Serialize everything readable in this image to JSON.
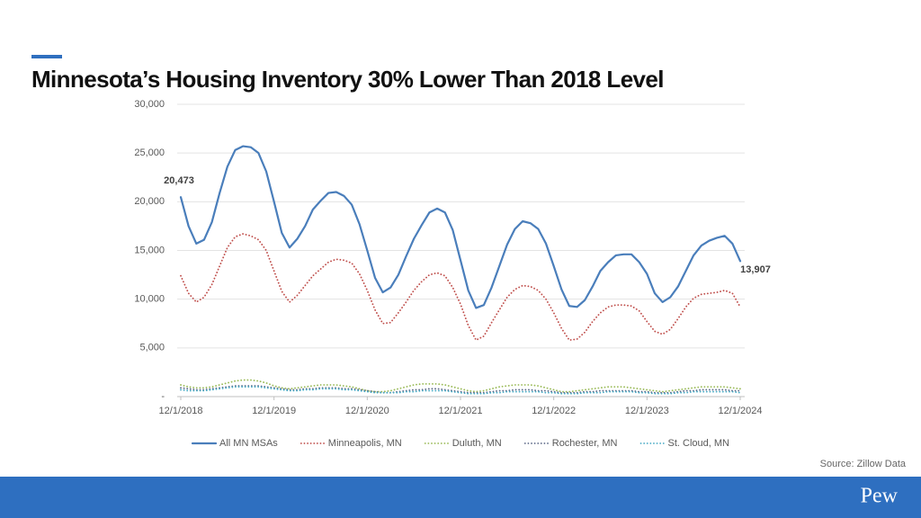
{
  "chart_data": {
    "type": "line",
    "title": "Minnesota’s Housing Inventory 30% Lower Than 2018 Level",
    "source": "Source: Zillow Data",
    "brand": "Pew",
    "categories": [
      "12/1/2018",
      null,
      null,
      null,
      null,
      null,
      null,
      null,
      null,
      null,
      null,
      null,
      "12/1/2019",
      null,
      null,
      null,
      null,
      null,
      null,
      null,
      null,
      null,
      null,
      null,
      "12/1/2020",
      null,
      null,
      null,
      null,
      null,
      null,
      null,
      null,
      null,
      null,
      null,
      "12/1/2021",
      null,
      null,
      null,
      null,
      null,
      null,
      null,
      null,
      null,
      null,
      null,
      "12/1/2022",
      null,
      null,
      null,
      null,
      null,
      null,
      null,
      null,
      null,
      null,
      null,
      "12/1/2023",
      null,
      null,
      null,
      null,
      null,
      null,
      null,
      null,
      null,
      null,
      null,
      "12/1/2024"
    ],
    "ylim": [
      0,
      30000
    ],
    "yticks": [
      {
        "value": 0,
        "label": "-"
      },
      {
        "value": 5000,
        "label": "5,000"
      },
      {
        "value": 10000,
        "label": "10,000"
      },
      {
        "value": 15000,
        "label": "15,000"
      },
      {
        "value": 20000,
        "label": "20,000"
      },
      {
        "value": 25000,
        "label": "25,000"
      },
      {
        "value": 30000,
        "label": "30,000"
      }
    ],
    "grid": true,
    "legend": "bottom",
    "series": [
      {
        "name": "All MN MSAs",
        "color": "#4a7ebb",
        "style": "solid",
        "values": [
          20473,
          17500,
          15700,
          16100,
          17900,
          20900,
          23600,
          25300,
          25700,
          25600,
          25000,
          23100,
          20000,
          16800,
          15300,
          16200,
          17500,
          19200,
          20100,
          20900,
          21000,
          20600,
          19700,
          17700,
          15000,
          12200,
          10700,
          11200,
          12500,
          14400,
          16200,
          17600,
          18900,
          19300,
          18900,
          17100,
          14000,
          10900,
          9100,
          9400,
          11200,
          13400,
          15600,
          17200,
          18000,
          17800,
          17200,
          15700,
          13400,
          11000,
          9300,
          9200,
          9900,
          11300,
          12900,
          13800,
          14500,
          14600,
          14600,
          13800,
          12600,
          10600,
          9700,
          10200,
          11300,
          12900,
          14500,
          15500,
          16000,
          16300,
          16500,
          15700,
          13907
        ],
        "value_labels": [
          "20,473",
          null,
          null,
          null,
          null,
          null,
          null,
          null,
          null,
          null,
          null,
          null,
          null,
          null,
          null,
          null,
          null,
          null,
          null,
          null,
          null,
          null,
          null,
          null,
          null,
          null,
          null,
          null,
          null,
          null,
          null,
          null,
          null,
          null,
          null,
          null,
          null,
          null,
          null,
          null,
          null,
          null,
          null,
          null,
          null,
          null,
          null,
          null,
          null,
          null,
          null,
          null,
          null,
          null,
          null,
          null,
          null,
          null,
          null,
          null,
          null,
          null,
          null,
          null,
          null,
          null,
          null,
          null,
          null,
          null,
          null,
          null,
          "13,907"
        ]
      },
      {
        "name": "Minneapolis, MN",
        "color": "#c0504d",
        "style": "dotted",
        "values": [
          12400,
          10600,
          9700,
          10200,
          11500,
          13400,
          15300,
          16400,
          16700,
          16500,
          16100,
          15000,
          12900,
          10800,
          9700,
          10400,
          11400,
          12400,
          13100,
          13800,
          14100,
          14000,
          13700,
          12600,
          10900,
          8900,
          7500,
          7600,
          8600,
          9700,
          10900,
          11800,
          12500,
          12700,
          12400,
          11200,
          9500,
          7300,
          5800,
          6200,
          7600,
          8900,
          10200,
          11000,
          11400,
          11300,
          10900,
          10000,
          8600,
          7000,
          5800,
          5900,
          6600,
          7700,
          8600,
          9200,
          9400,
          9400,
          9300,
          8800,
          7700,
          6700,
          6400,
          6900,
          8000,
          9200,
          10100,
          10500,
          10600,
          10700,
          10900,
          10600,
          9200
        ]
      },
      {
        "name": "Duluth, MN",
        "color": "#9bbb59",
        "style": "dotted",
        "values": [
          1200,
          1000,
          900,
          900,
          1000,
          1200,
          1400,
          1600,
          1700,
          1700,
          1600,
          1400,
          1100,
          900,
          800,
          900,
          1000,
          1100,
          1200,
          1200,
          1200,
          1100,
          1000,
          800,
          600,
          500,
          500,
          600,
          800,
          1000,
          1200,
          1300,
          1300,
          1300,
          1200,
          1000,
          800,
          600,
          500,
          600,
          800,
          1000,
          1100,
          1200,
          1200,
          1200,
          1100,
          900,
          700,
          500,
          500,
          600,
          700,
          800,
          900,
          1000,
          1000,
          1000,
          900,
          800,
          700,
          600,
          500,
          600,
          700,
          800,
          900,
          1000,
          1000,
          1000,
          1000,
          900,
          800
        ]
      },
      {
        "name": "Rochester, MN",
        "color": "#5f6b8a",
        "style": "dotted",
        "values": [
          900,
          800,
          700,
          700,
          800,
          900,
          1000,
          1100,
          1100,
          1100,
          1100,
          1000,
          900,
          800,
          700,
          700,
          800,
          800,
          900,
          900,
          900,
          800,
          800,
          700,
          600,
          500,
          400,
          400,
          500,
          600,
          700,
          700,
          800,
          800,
          700,
          600,
          500,
          400,
          400,
          400,
          500,
          600,
          600,
          700,
          700,
          700,
          600,
          600,
          500,
          400,
          400,
          400,
          500,
          500,
          600,
          600,
          600,
          600,
          600,
          500,
          500,
          400,
          400,
          400,
          500,
          600,
          600,
          700,
          700,
          700,
          700,
          600,
          600
        ]
      },
      {
        "name": "St. Cloud, MN",
        "color": "#4bacc6",
        "style": "dotted",
        "values": [
          700,
          600,
          600,
          600,
          700,
          800,
          900,
          1000,
          1000,
          1000,
          1000,
          900,
          800,
          700,
          600,
          600,
          700,
          700,
          800,
          800,
          800,
          700,
          700,
          600,
          500,
          400,
          400,
          400,
          400,
          500,
          500,
          600,
          600,
          600,
          600,
          500,
          400,
          300,
          300,
          300,
          400,
          400,
          500,
          500,
          500,
          500,
          500,
          400,
          400,
          300,
          300,
          300,
          400,
          400,
          400,
          500,
          500,
          500,
          500,
          400,
          400,
          300,
          300,
          300,
          400,
          400,
          500,
          500,
          500,
          500,
          500,
          500,
          400
        ]
      }
    ]
  }
}
